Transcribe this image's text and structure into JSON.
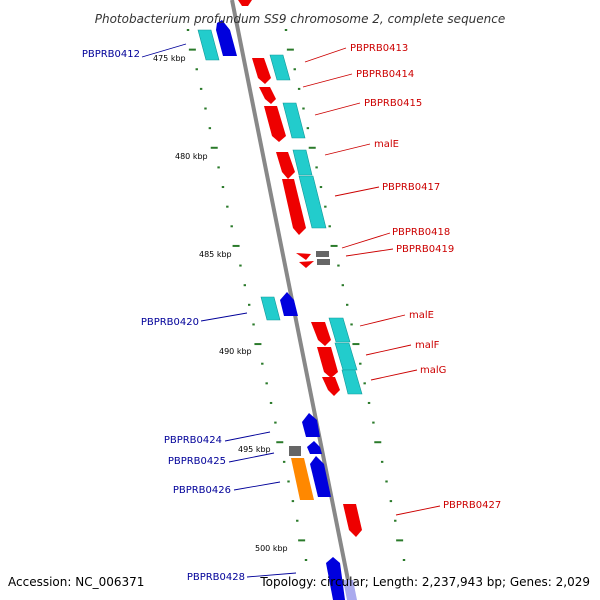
{
  "title": "Photobacterium profundum SS9 chromosome 2, complete sequence",
  "footer": {
    "accession": "Accession: NC_006371",
    "summary": "Topology: circular; Length: 2,237,943 bp; Genes: 2,029"
  },
  "colors": {
    "backbone": "#888888",
    "tick": "#2a7a2a",
    "gene_red": "#ee0000",
    "gene_cyan": "#22cccc",
    "gene_blue": "#0000dd",
    "gene_orange": "#ff8800",
    "gene_gray": "#666666",
    "label_red": "#cc0000",
    "label_blue": "#000099"
  },
  "scale_labels": [
    "475 kbp",
    "480 kbp",
    "485 kbp",
    "490 kbp",
    "495 kbp",
    "500 kbp"
  ],
  "gene_labels": [
    {
      "text": "PBPRB0412",
      "color": "blue"
    },
    {
      "text": "PBPRB0413",
      "color": "red"
    },
    {
      "text": "PBPRB0414",
      "color": "red"
    },
    {
      "text": "PBPRB0415",
      "color": "red"
    },
    {
      "text": "malE",
      "color": "red"
    },
    {
      "text": "PBPRB0417",
      "color": "red"
    },
    {
      "text": "PBPRB0418",
      "color": "red"
    },
    {
      "text": "PBPRB0419",
      "color": "red"
    },
    {
      "text": "PBPRB0420",
      "color": "blue"
    },
    {
      "text": "malE",
      "color": "red"
    },
    {
      "text": "malF",
      "color": "red"
    },
    {
      "text": "malG",
      "color": "red"
    },
    {
      "text": "PBPRB0424",
      "color": "blue"
    },
    {
      "text": "PBPRB0425",
      "color": "blue"
    },
    {
      "text": "PBPRB0426",
      "color": "blue"
    },
    {
      "text": "PBPRB0427",
      "color": "red"
    },
    {
      "text": "PBPRB0428",
      "color": "blue"
    }
  ]
}
